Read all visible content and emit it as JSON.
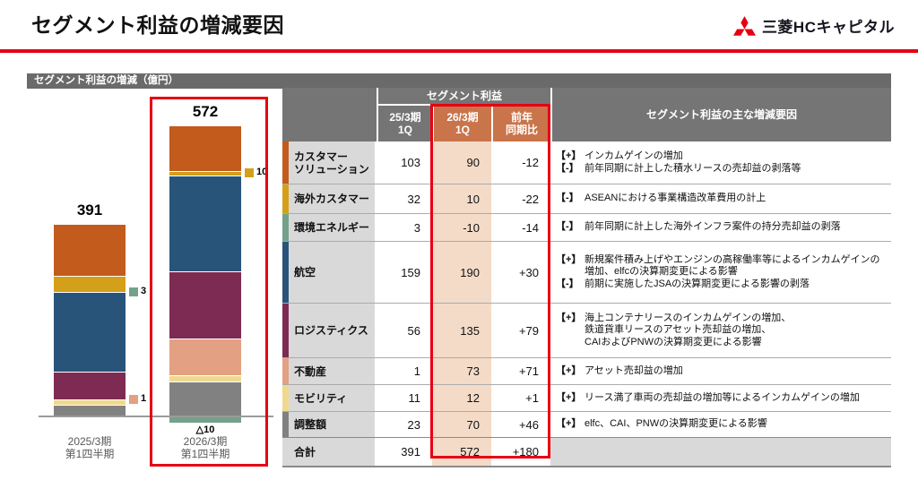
{
  "page": {
    "title": "セグメント利益の増減要因",
    "logo_text": "三菱HCキャピタル"
  },
  "panel": {
    "header": "セグメント利益の増減（億円）"
  },
  "colors": {
    "accent_red": "#E60012",
    "header_gray": "#757575",
    "panel_gray": "#6A6A6A",
    "name_cell_gray": "#D9D9D9",
    "orange_header": "#C9744A",
    "peach_column": "#F3DBC8",
    "customer": "#C25B1C",
    "overseas": "#D4A01A",
    "environment": "#74A18A",
    "aviation": "#28547A",
    "logistics": "#7D2B52",
    "realestate": "#E3A083",
    "mobility": "#EFD98F",
    "adjustment": "#818181"
  },
  "chart_data": {
    "type": "bar",
    "stacked": true,
    "title": "セグメント利益の増減（億円）",
    "unit": "億円",
    "categories": [
      "2025/3期\n第1四半期",
      "2026/3期\n第1四半期"
    ],
    "totals": [
      "391",
      "572"
    ],
    "highlighted_category_index": 1,
    "series": [
      {
        "name": "カスタマーソリューション",
        "color": "#C25B1C",
        "values": [
          103,
          90
        ],
        "display": [
          "stack",
          "stack"
        ]
      },
      {
        "name": "海外カスタマー",
        "color": "#D4A01A",
        "values": [
          32,
          10
        ],
        "display": [
          "stack",
          "thin-with-side-label"
        ]
      },
      {
        "name": "環境エネルギー",
        "color": "#74A18A",
        "values": [
          3,
          -10
        ],
        "display": [
          "side-marker",
          "below-axis"
        ]
      },
      {
        "name": "航空",
        "color": "#28547A",
        "values": [
          159,
          190
        ],
        "display": [
          "stack",
          "stack"
        ]
      },
      {
        "name": "ロジスティクス",
        "color": "#7D2B52",
        "values": [
          56,
          135
        ],
        "display": [
          "stack",
          "stack"
        ]
      },
      {
        "name": "不動産",
        "color": "#E3A083",
        "values": [
          1,
          73
        ],
        "display": [
          "side-marker",
          "stack"
        ],
        "dark_label": true
      },
      {
        "name": "モビリティ",
        "color": "#EFD98F",
        "values": [
          11,
          12
        ],
        "display": [
          "stack",
          "stack"
        ],
        "dark_label": true
      },
      {
        "name": "調整額",
        "color": "#818181",
        "values": [
          23,
          70
        ],
        "display": [
          "stack",
          "stack"
        ]
      }
    ],
    "negative_label": "△10"
  },
  "table": {
    "header": {
      "group": "セグメント利益",
      "cols": [
        "25/3期\n1Q",
        "26/3期\n1Q",
        "前年\n同期比"
      ],
      "factors": "セグメント利益の主な増減要因"
    },
    "rows": [
      {
        "name": "カスタマー\nソリューション",
        "color": "#C25B1C",
        "values": [
          "103",
          "90",
          "-12"
        ],
        "factors": [
          {
            "tag": "【+】",
            "text": "インカムゲインの増加"
          },
          {
            "tag": "【-】",
            "text": "前年同期に計上した積水リースの売却益の剥落等"
          }
        ]
      },
      {
        "name": "海外カスタマー",
        "color": "#D4A01A",
        "values": [
          "32",
          "10",
          "-22"
        ],
        "factors": [
          {
            "tag": "【-】",
            "text": "ASEANにおける事業構造改革費用の計上"
          }
        ]
      },
      {
        "name": "環境エネルギー",
        "color": "#74A18A",
        "values": [
          "3",
          "-10",
          "-14"
        ],
        "factors": [
          {
            "tag": "【-】",
            "text": "前年同期に計上した海外インフラ案件の持分売却益の剥落"
          }
        ]
      },
      {
        "name": "航空",
        "color": "#28547A",
        "values": [
          "159",
          "190",
          "+30"
        ],
        "factors": [
          {
            "tag": "【+】",
            "text": "新規案件積み上げやエンジンの高稼働率等によるインカムゲインの\n増加、elfcの決算期変更による影響"
          },
          {
            "tag": "【-】",
            "text": "前期に実施したJSAの決算期変更による影響の剥落"
          }
        ]
      },
      {
        "name": "ロジスティクス",
        "color": "#7D2B52",
        "values": [
          "56",
          "135",
          "+79"
        ],
        "factors": [
          {
            "tag": "【+】",
            "text": "海上コンテナリースのインカムゲインの増加、\n鉄道貨車リースのアセット売却益の増加、\nCAIおよびPNWの決算期変更による影響"
          }
        ]
      },
      {
        "name": "不動産",
        "color": "#E3A083",
        "values": [
          "1",
          "73",
          "+71"
        ],
        "factors": [
          {
            "tag": "【+】",
            "text": "アセット売却益の増加"
          }
        ]
      },
      {
        "name": "モビリティ",
        "color": "#EFD98F",
        "values": [
          "11",
          "12",
          "+1"
        ],
        "factors": [
          {
            "tag": "【+】",
            "text": "リース満了車両の売却益の増加等によるインカムゲインの増加"
          }
        ]
      },
      {
        "name": "調整額",
        "color": "#818181",
        "values": [
          "23",
          "70",
          "+46"
        ],
        "factors": [
          {
            "tag": "【+】",
            "text": "elfc、CAI、PNWの決算期変更による影響"
          }
        ]
      },
      {
        "name": "合計",
        "color": null,
        "is_total": true,
        "values": [
          "391",
          "572",
          "+180"
        ],
        "factors": []
      }
    ]
  }
}
